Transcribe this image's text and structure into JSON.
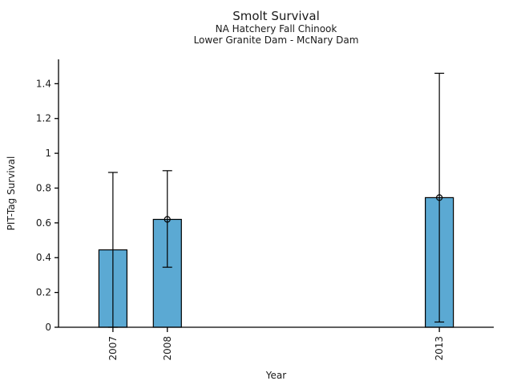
{
  "chart_data": {
    "type": "bar",
    "title": "Smolt Survival",
    "subtitle": [
      "NA Hatchery Fall Chinook",
      "Lower Granite Dam - McNary Dam"
    ],
    "xlabel": "Year",
    "ylabel": "PIT-Tag Survival",
    "categories": [
      2007,
      2008,
      2013
    ],
    "values": [
      0.445,
      0.62,
      0.745
    ],
    "error_low": [
      0.0,
      0.345,
      0.03
    ],
    "error_high": [
      0.89,
      0.9,
      1.46
    ],
    "point_marker": [
      false,
      true,
      true
    ],
    "xtick_labels": [
      "2007",
      "2008",
      "2013"
    ],
    "ytick_values": [
      0,
      0.2,
      0.4,
      0.6,
      0.8,
      1,
      1.2,
      1.4
    ],
    "ytick_labels": [
      "0",
      "0.2",
      "0.4",
      "0.6",
      "0.8",
      "1",
      "1.2",
      "1.4"
    ],
    "xlim": [
      2006,
      2014
    ],
    "ylim": [
      0,
      1.54
    ],
    "grid": false,
    "legend": null,
    "bar_color": "#5BA9D3",
    "bar_edge_color": "#000000",
    "error_color": "#000000",
    "axis_color": "#000000",
    "background": "#FFFFFF"
  }
}
